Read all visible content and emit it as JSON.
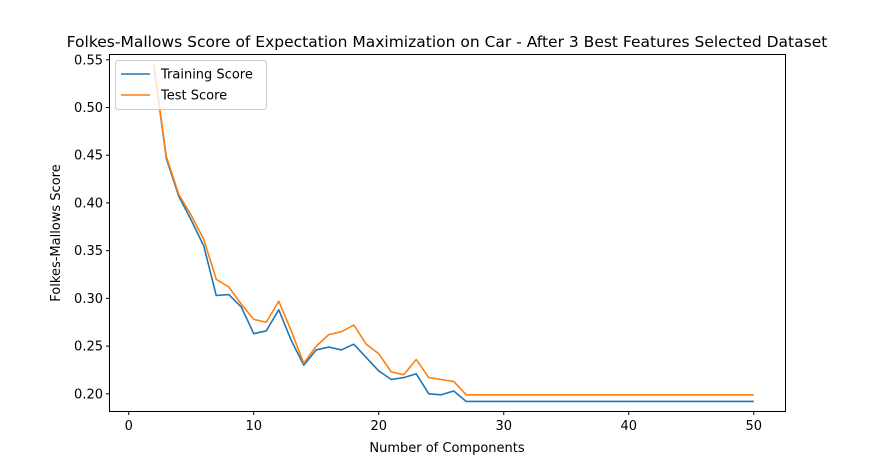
{
  "chart_data": {
    "type": "line",
    "title": "Folkes-Mallows Score of Expectation Maximization on Car - After 3 Best Features Selected Dataset",
    "xlabel": "Number of Components",
    "ylabel": "Folkes-Mallows Score",
    "xlim": [
      -1.5,
      52.5
    ],
    "ylim": [
      0.182,
      0.555
    ],
    "xticks": [
      0,
      10,
      20,
      30,
      40,
      50
    ],
    "yticks": [
      0.2,
      0.25,
      0.3,
      0.35,
      0.4,
      0.45,
      0.5,
      0.55
    ],
    "legend_position": "top-left",
    "grid": false,
    "x": [
      2,
      3,
      4,
      5,
      6,
      7,
      8,
      9,
      10,
      11,
      12,
      13,
      14,
      15,
      16,
      17,
      18,
      19,
      20,
      21,
      22,
      23,
      24,
      25,
      26,
      27,
      28,
      29,
      30,
      31,
      32,
      33,
      34,
      35,
      36,
      37,
      38,
      39,
      40,
      41,
      42,
      43,
      44,
      45,
      46,
      47,
      48,
      49,
      50
    ],
    "series": [
      {
        "name": "Training Score",
        "color": "#1f77b4",
        "values": [
          0.545,
          0.447,
          0.407,
          0.382,
          0.355,
          0.303,
          0.304,
          0.291,
          0.263,
          0.266,
          0.288,
          0.256,
          0.23,
          0.246,
          0.249,
          0.246,
          0.252,
          0.238,
          0.224,
          0.215,
          0.217,
          0.221,
          0.2,
          0.199,
          0.203,
          0.192,
          0.192,
          0.192,
          0.192,
          0.192,
          0.192,
          0.192,
          0.192,
          0.192,
          0.192,
          0.192,
          0.192,
          0.192,
          0.192,
          0.192,
          0.192,
          0.192,
          0.192,
          0.192,
          0.192,
          0.192,
          0.192,
          0.192,
          0.192
        ]
      },
      {
        "name": "Test Score",
        "color": "#ff7f0e",
        "values": [
          0.545,
          0.449,
          0.409,
          0.387,
          0.362,
          0.32,
          0.312,
          0.294,
          0.278,
          0.275,
          0.297,
          0.266,
          0.232,
          0.25,
          0.262,
          0.265,
          0.272,
          0.252,
          0.242,
          0.223,
          0.22,
          0.236,
          0.217,
          0.215,
          0.213,
          0.199,
          0.199,
          0.199,
          0.199,
          0.199,
          0.199,
          0.199,
          0.199,
          0.199,
          0.199,
          0.199,
          0.199,
          0.199,
          0.199,
          0.199,
          0.199,
          0.199,
          0.199,
          0.199,
          0.199,
          0.199,
          0.199,
          0.199,
          0.199
        ]
      }
    ]
  }
}
